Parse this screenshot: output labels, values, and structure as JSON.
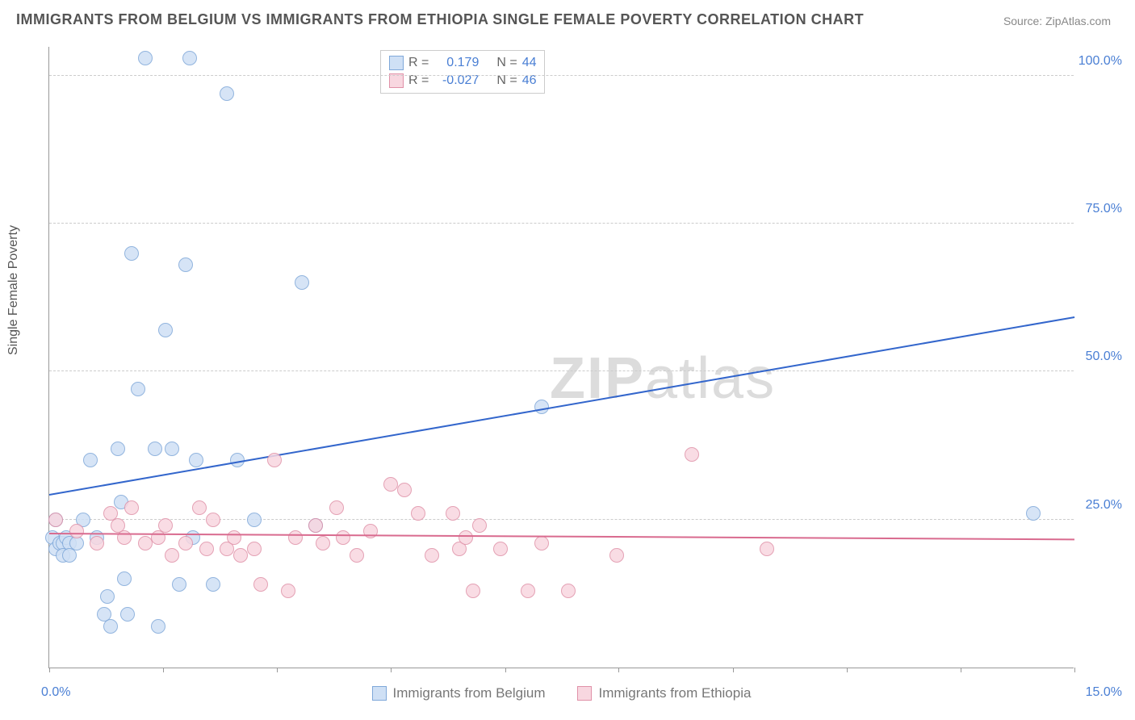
{
  "title": "IMMIGRANTS FROM BELGIUM VS IMMIGRANTS FROM ETHIOPIA SINGLE FEMALE POVERTY CORRELATION CHART",
  "source": "Source: ZipAtlas.com",
  "ylabel": "Single Female Poverty",
  "watermark_bold": "ZIP",
  "watermark_thin": "atlas",
  "chart": {
    "type": "scatter",
    "xlim": [
      0,
      15
    ],
    "ylim": [
      0,
      105
    ],
    "yticks": [
      25,
      50,
      75,
      100
    ],
    "ytick_labels": [
      "25.0%",
      "50.0%",
      "75.0%",
      "100.0%"
    ],
    "ytick_color": "#4a7fd4",
    "xticks": [
      0,
      1.67,
      3.33,
      5.0,
      6.67,
      8.33,
      10.0,
      11.67,
      13.33,
      15.0
    ],
    "xaxis_left_label": "0.0%",
    "xaxis_right_label": "15.0%",
    "xaxis_label_color": "#4a7fd4",
    "grid_color": "#cccccc",
    "axis_color": "#999999",
    "background_color": "#ffffff",
    "point_radius": 9,
    "series": [
      {
        "name": "Immigrants from Belgium",
        "fill": "#cfe0f5",
        "stroke": "#7fa8d9",
        "r_value": "0.179",
        "n_value": "44",
        "trend": {
          "x1": 0,
          "y1": 29,
          "x2": 15,
          "y2": 59,
          "color": "#3366cc"
        },
        "points": [
          [
            0.05,
            22
          ],
          [
            0.1,
            25
          ],
          [
            0.1,
            20
          ],
          [
            0.15,
            21
          ],
          [
            0.2,
            21
          ],
          [
            0.2,
            19
          ],
          [
            0.25,
            22
          ],
          [
            0.3,
            21
          ],
          [
            0.3,
            19
          ],
          [
            0.4,
            21
          ],
          [
            0.5,
            25
          ],
          [
            0.6,
            35
          ],
          [
            0.7,
            22
          ],
          [
            0.8,
            9
          ],
          [
            0.85,
            12
          ],
          [
            0.9,
            7
          ],
          [
            1.0,
            37
          ],
          [
            1.05,
            28
          ],
          [
            1.1,
            15
          ],
          [
            1.15,
            9
          ],
          [
            1.2,
            70
          ],
          [
            1.3,
            47
          ],
          [
            1.4,
            103
          ],
          [
            1.55,
            37
          ],
          [
            1.6,
            7
          ],
          [
            1.7,
            57
          ],
          [
            1.8,
            37
          ],
          [
            1.9,
            14
          ],
          [
            2.0,
            68
          ],
          [
            2.05,
            103
          ],
          [
            2.1,
            22
          ],
          [
            2.15,
            35
          ],
          [
            2.4,
            14
          ],
          [
            2.6,
            97
          ],
          [
            2.75,
            35
          ],
          [
            3.0,
            25
          ],
          [
            3.7,
            65
          ],
          [
            3.9,
            24
          ],
          [
            7.2,
            44
          ],
          [
            14.4,
            26
          ]
        ]
      },
      {
        "name": "Immigrants from Ethiopia",
        "fill": "#f8d7e0",
        "stroke": "#e091a8",
        "r_value": "-0.027",
        "n_value": "46",
        "trend": {
          "x1": 0,
          "y1": 22.5,
          "x2": 15,
          "y2": 21.5,
          "color": "#d96b8f"
        },
        "points": [
          [
            0.1,
            25
          ],
          [
            0.4,
            23
          ],
          [
            0.7,
            21
          ],
          [
            0.9,
            26
          ],
          [
            1.0,
            24
          ],
          [
            1.1,
            22
          ],
          [
            1.2,
            27
          ],
          [
            1.4,
            21
          ],
          [
            1.6,
            22
          ],
          [
            1.7,
            24
          ],
          [
            1.8,
            19
          ],
          [
            2.0,
            21
          ],
          [
            2.2,
            27
          ],
          [
            2.3,
            20
          ],
          [
            2.4,
            25
          ],
          [
            2.6,
            20
          ],
          [
            2.7,
            22
          ],
          [
            2.8,
            19
          ],
          [
            3.0,
            20
          ],
          [
            3.1,
            14
          ],
          [
            3.3,
            35
          ],
          [
            3.5,
            13
          ],
          [
            3.6,
            22
          ],
          [
            3.9,
            24
          ],
          [
            4.0,
            21
          ],
          [
            4.2,
            27
          ],
          [
            4.3,
            22
          ],
          [
            4.5,
            19
          ],
          [
            4.7,
            23
          ],
          [
            5.0,
            31
          ],
          [
            5.2,
            30
          ],
          [
            5.4,
            26
          ],
          [
            5.6,
            19
          ],
          [
            5.9,
            26
          ],
          [
            6.0,
            20
          ],
          [
            6.1,
            22
          ],
          [
            6.2,
            13
          ],
          [
            6.3,
            24
          ],
          [
            6.6,
            20
          ],
          [
            7.0,
            13
          ],
          [
            7.2,
            21
          ],
          [
            7.6,
            13
          ],
          [
            8.3,
            19
          ],
          [
            9.4,
            36
          ],
          [
            10.5,
            20
          ]
        ]
      }
    ]
  },
  "legend_top": {
    "r_label": "R =",
    "n_label": "N =",
    "value_color": "#4a7fd4",
    "text_color": "#666666"
  },
  "legend_bottom_items": [
    "Immigrants from Belgium",
    "Immigrants from Ethiopia"
  ]
}
